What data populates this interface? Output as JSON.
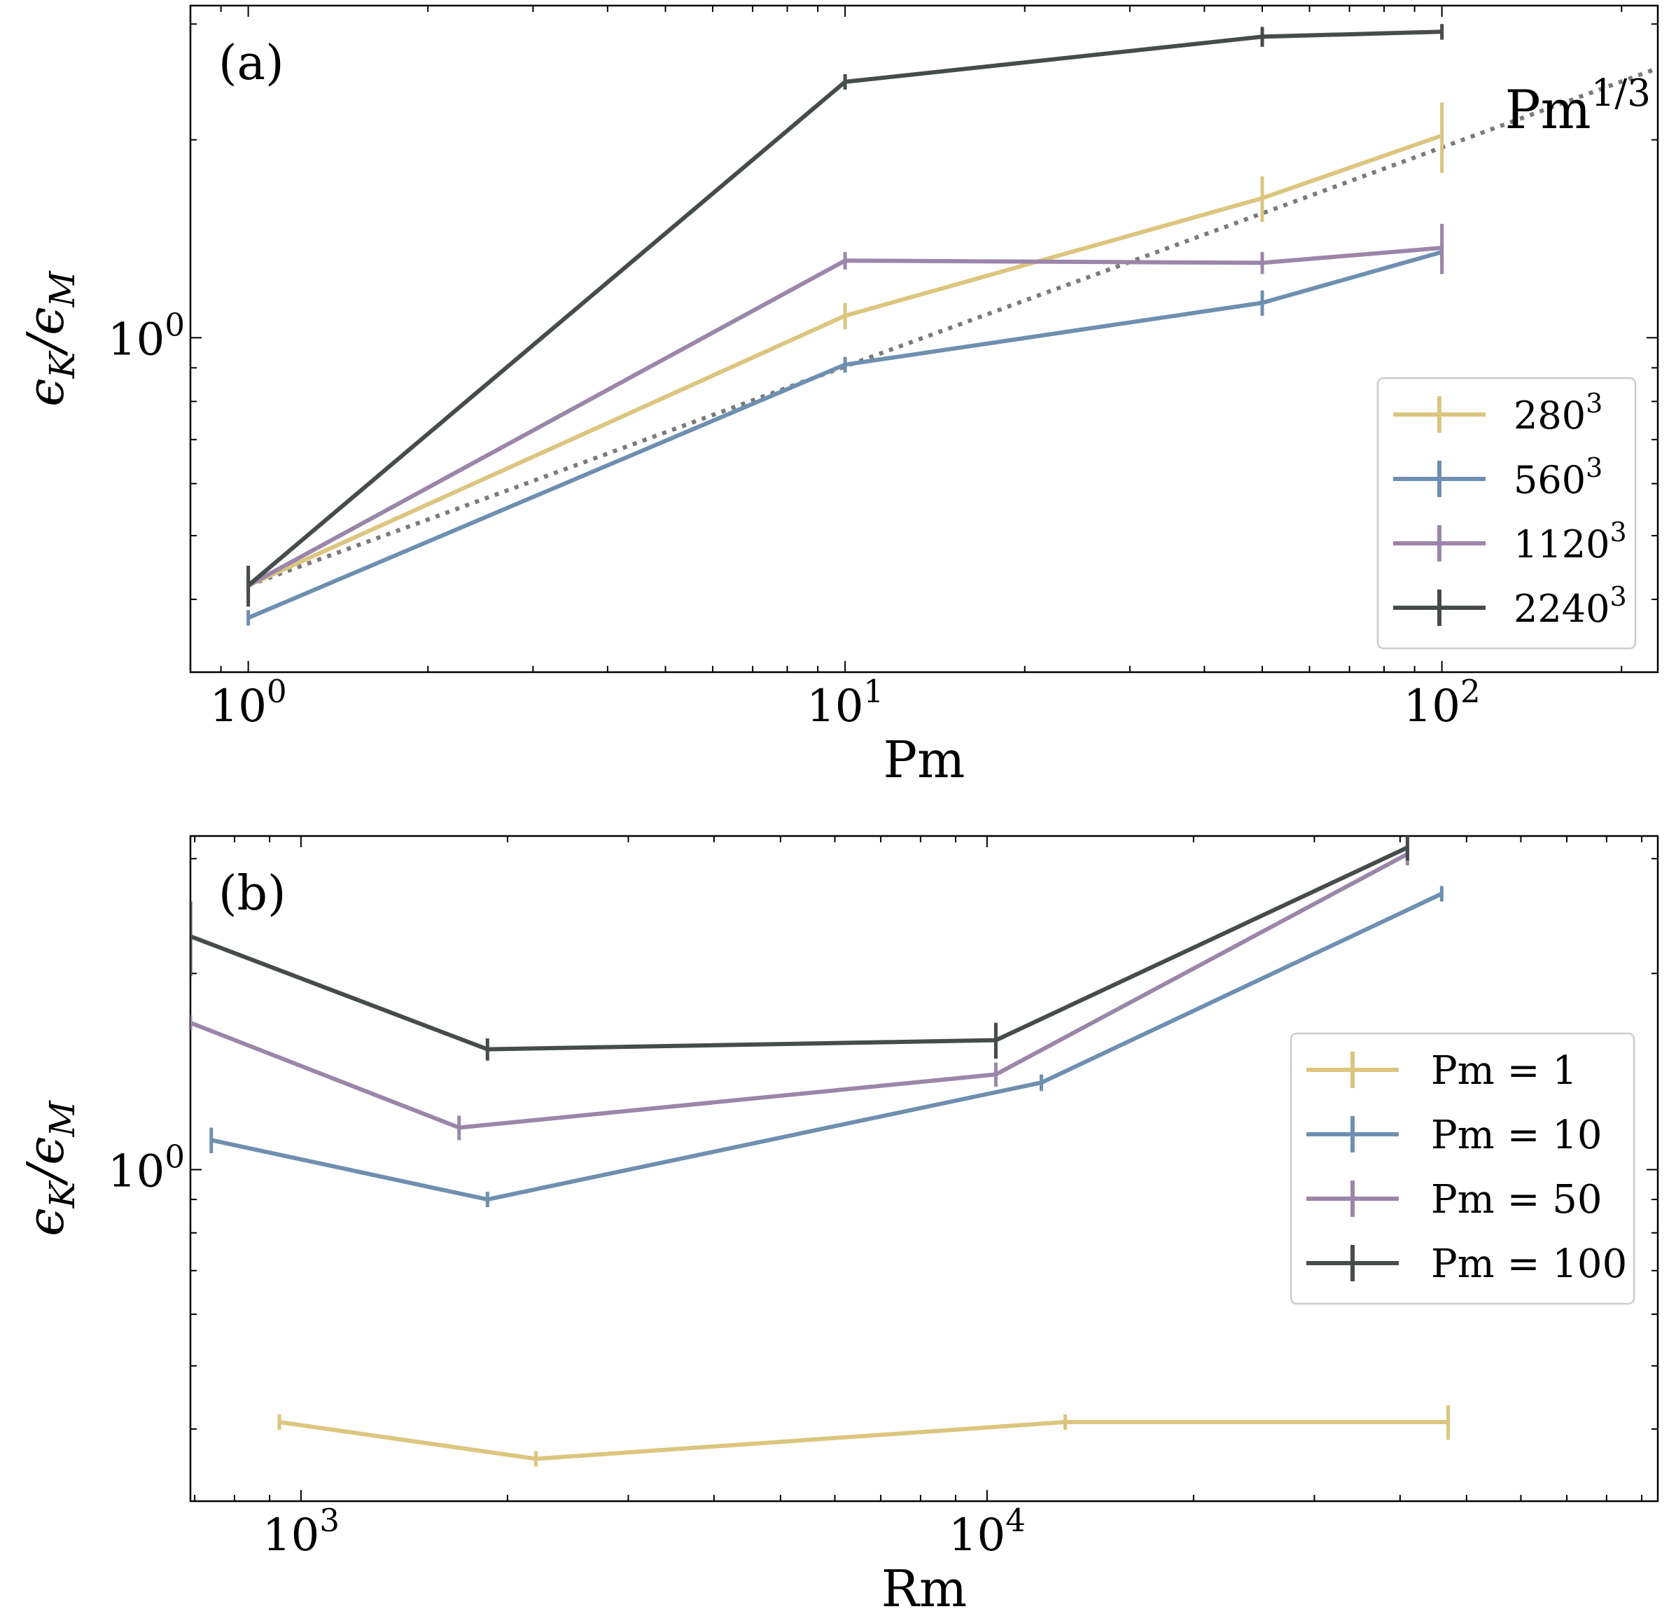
{
  "chart_data": [
    {
      "type": "line",
      "panel_label": "(a)",
      "xlabel": "Pm",
      "ylabel": "εK/εM",
      "x_scale": "log",
      "y_scale": "log",
      "xlim": [
        0.8,
        230
      ],
      "ylim": [
        0.31,
        3.2
      ],
      "x_ticks": [
        {
          "value": 1,
          "base": "10",
          "exp": "0"
        },
        {
          "value": 10,
          "base": "10",
          "exp": "1"
        },
        {
          "value": 100,
          "base": "10",
          "exp": "2"
        }
      ],
      "y_ticks": [
        {
          "value": 1,
          "base": "10",
          "exp": "0"
        }
      ],
      "grid": false,
      "legend_position": "lower-right",
      "annotation": {
        "base": "Pm",
        "exp": "1/3"
      },
      "reference_line": {
        "label": "Pm^(1/3)",
        "x": [
          1,
          230
        ],
        "y": [
          0.42,
          2.57
        ]
      },
      "series": [
        {
          "name": "280",
          "exp": "3",
          "color": "#dcc57e",
          "points": [
            {
              "x": 1,
              "y": 0.42,
              "err": 0.02
            },
            {
              "x": 10,
              "y": 1.08,
              "err": 0.05
            },
            {
              "x": 50,
              "y": 1.63,
              "err": 0.13
            },
            {
              "x": 100,
              "y": 2.03,
              "err": 0.25
            }
          ]
        },
        {
          "name": "560",
          "exp": "3",
          "color": "#6e8fb0",
          "points": [
            {
              "x": 1,
              "y": 0.375,
              "err": 0.01
            },
            {
              "x": 10,
              "y": 0.91,
              "err": 0.025
            },
            {
              "x": 50,
              "y": 1.13,
              "err": 0.05
            },
            {
              "x": 100,
              "y": 1.35,
              "err": 0.05
            }
          ]
        },
        {
          "name": "1120",
          "exp": "3",
          "color": "#9b86aa",
          "points": [
            {
              "x": 1,
              "y": 0.42,
              "err": 0.01
            },
            {
              "x": 10,
              "y": 1.31,
              "err": 0.04
            },
            {
              "x": 50,
              "y": 1.3,
              "err": 0.05
            },
            {
              "x": 100,
              "y": 1.37,
              "err": 0.12
            }
          ]
        },
        {
          "name": "2240",
          "exp": "3",
          "color": "#464b4b",
          "points": [
            {
              "x": 1,
              "y": 0.42,
              "err": 0.03
            },
            {
              "x": 10,
              "y": 2.45,
              "err": 0.02
            },
            {
              "x": 50,
              "y": 2.87,
              "err": 0.1
            },
            {
              "x": 100,
              "y": 2.92,
              "err": 0.08
            }
          ]
        }
      ]
    },
    {
      "type": "line",
      "panel_label": "(b)",
      "xlabel": "Rm",
      "ylabel": "εK/εM",
      "x_scale": "log",
      "y_scale": "log",
      "xlim": [
        690,
        95000
      ],
      "ylim": [
        0.31,
        3.25
      ],
      "x_ticks": [
        {
          "value": 1000,
          "base": "10",
          "exp": "3"
        },
        {
          "value": 10000,
          "base": "10",
          "exp": "4"
        }
      ],
      "y_ticks": [
        {
          "value": 1,
          "base": "10",
          "exp": "0"
        }
      ],
      "grid": false,
      "legend_position": "right",
      "series": [
        {
          "name": "Pm = 1",
          "color": "#dcc57e",
          "points": [
            {
              "x": 930,
              "y": 0.41,
              "err": 0.006
            },
            {
              "x": 2200,
              "y": 0.36,
              "err": 0.005
            },
            {
              "x": 13000,
              "y": 0.41,
              "err": 0.006
            },
            {
              "x": 47000,
              "y": 0.41,
              "err": 0.025
            }
          ]
        },
        {
          "name": "Pm = 10",
          "color": "#6e8fb0",
          "points": [
            {
              "x": 740,
              "y": 1.11,
              "err": 0.05
            },
            {
              "x": 1870,
              "y": 0.9,
              "err": 0.02
            },
            {
              "x": 12000,
              "y": 1.36,
              "err": 0.04
            },
            {
              "x": 46000,
              "y": 2.65,
              "err": 0.01
            }
          ]
        },
        {
          "name": "Pm = 50",
          "color": "#9b86aa",
          "points": [
            {
              "x": 690,
              "y": 1.68,
              "err": 0.0
            },
            {
              "x": 1700,
              "y": 1.16,
              "err": 0.05
            },
            {
              "x": 10300,
              "y": 1.4,
              "err": 0.06
            },
            {
              "x": 41000,
              "y": 3.05,
              "err": 0.12
            }
          ]
        },
        {
          "name": "Pm = 100",
          "color": "#464b4b",
          "points": [
            {
              "x": 690,
              "y": 2.28,
              "err": 0.3
            },
            {
              "x": 1870,
              "y": 1.53,
              "err": 0.06
            },
            {
              "x": 10300,
              "y": 1.58,
              "err": 0.1
            },
            {
              "x": 41000,
              "y": 3.12,
              "err": 0.14
            }
          ]
        }
      ]
    }
  ]
}
